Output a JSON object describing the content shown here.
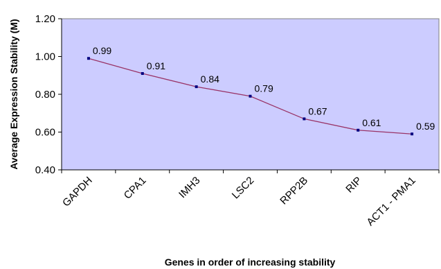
{
  "chart_data": {
    "type": "line",
    "title": "",
    "xlabel": "Genes in order of increasing stability",
    "ylabel": "Average Expression Stability (M)",
    "categories": [
      "GAPDH",
      "CPA1",
      "IMH3",
      "LSC2",
      "RPP2B",
      "RIP",
      "ACT1 - PMA1"
    ],
    "series": [
      {
        "values": [
          0.99,
          0.91,
          0.84,
          0.79,
          0.67,
          0.61,
          0.59
        ],
        "labels": [
          "0.99",
          "0.91",
          "0.84",
          "0.79",
          "0.67",
          "0.61",
          "0.59"
        ]
      }
    ],
    "ylim": [
      0.4,
      1.2
    ],
    "yticks": [
      0.4,
      0.6,
      0.8,
      1.0,
      1.2
    ],
    "ytick_labels": [
      "0.40",
      "0.60",
      "0.80",
      "1.00",
      "1.20"
    ],
    "grid": false,
    "legend": "none",
    "colors": {
      "plot_background": "#ccccff",
      "line": "#993366",
      "marker": "#000080"
    }
  }
}
